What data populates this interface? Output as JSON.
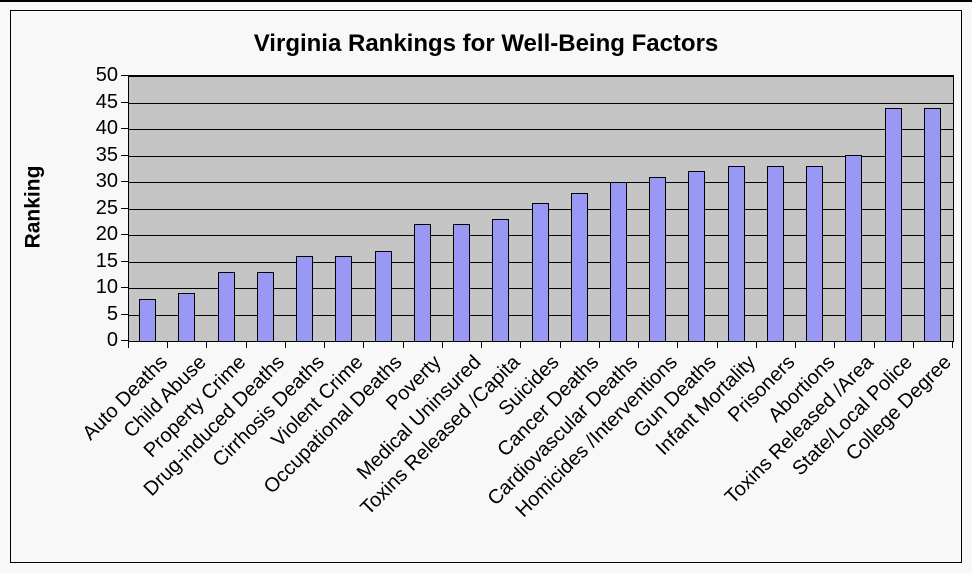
{
  "chart_data": {
    "type": "bar",
    "title": "Virginia Rankings for Well-Being Factors",
    "ylabel": "Ranking",
    "xlabel": "",
    "categories": [
      "Auto Deaths",
      "Child Abuse",
      "Property Crime",
      "Drug-induced Deaths",
      "Cirrhosis Deaths",
      "Violent Crime",
      "Occupational Deaths",
      "Poverty",
      "Medical Uninsured",
      "Toxins Released /Capita",
      "Suicides",
      "Cancer Deaths",
      "Cardiovascular Deaths",
      "Homicides /Interventions",
      "Gun Deaths",
      "Infant Mortality",
      "Prisoners",
      "Abortions",
      "Toxins Released /Area",
      "State/Local Police",
      "College Degree"
    ],
    "values": [
      8,
      9,
      13,
      13,
      16,
      16,
      17,
      22,
      22,
      23,
      26,
      28,
      30,
      31,
      32,
      33,
      33,
      33,
      35,
      44,
      44
    ],
    "ylim": [
      0,
      50
    ],
    "yticks": [
      0,
      5,
      10,
      15,
      20,
      25,
      30,
      35,
      40,
      45,
      50
    ],
    "grid": true,
    "legend": false,
    "colors": {
      "bar_fill": "#9999F5",
      "bar_border": "#000000",
      "plot_background": "#C5C5C5",
      "chart_background": "#F8F8F8",
      "gridline": "#000000",
      "text": "#000000"
    }
  }
}
